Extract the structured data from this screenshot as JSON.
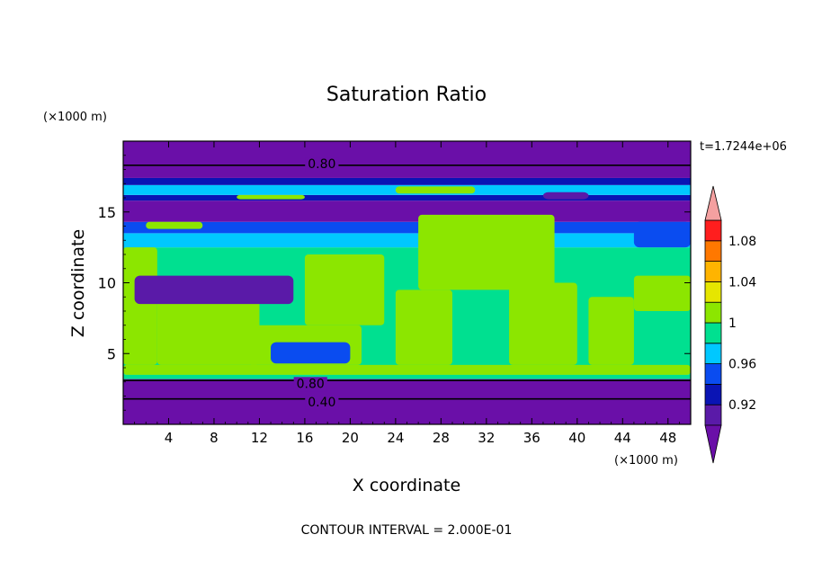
{
  "chart_data": {
    "type": "heatmap",
    "title": "Saturation Ratio",
    "xlabel": "X coordinate",
    "ylabel": "Z coordinate",
    "x_unit": "(×1000 m)",
    "y_unit": "(×1000 m)",
    "time_label": "t=1.7244e+06",
    "footer": "CONTOUR INTERVAL = 2.000E-01",
    "xlim": [
      0,
      50
    ],
    "ylim": [
      0,
      20
    ],
    "x_ticks": [
      4,
      8,
      12,
      16,
      20,
      24,
      28,
      32,
      36,
      40,
      44,
      48
    ],
    "y_ticks": [
      5,
      10,
      15
    ],
    "colorbar": {
      "levels": [
        0.9,
        0.92,
        0.94,
        0.96,
        0.98,
        1.0,
        1.02,
        1.04,
        1.06,
        1.08,
        1.1
      ],
      "labels": [
        "0.92",
        "0.96",
        "1",
        "1.04",
        "1.08"
      ],
      "label_values": [
        0.92,
        0.96,
        1.0,
        1.04,
        1.08
      ],
      "below_color": "#6a0fa8",
      "above_color": "#f4a0a0",
      "colors": [
        "#5a1aa8",
        "#0a14b4",
        "#0a4cf0",
        "#00c8ff",
        "#00e090",
        "#8ce600",
        "#e6e600",
        "#ffb400",
        "#ff7800",
        "#ff1e1e"
      ]
    },
    "contour_labels": [
      {
        "text": "0.80",
        "x": 17.5,
        "z": 18.4
      },
      {
        "text": "0.80",
        "x": 16.5,
        "z": 2.9
      },
      {
        "text": "0.40",
        "x": 17.5,
        "z": 1.6
      }
    ],
    "bands": [
      {
        "z0": 0.0,
        "z1": 3.2,
        "value": 0.6
      },
      {
        "z0": 3.2,
        "z1": 3.5,
        "value": 0.99
      },
      {
        "z0": 3.5,
        "z1": 12.5,
        "value": 0.99
      },
      {
        "z0": 12.5,
        "z1": 13.5,
        "value": 0.97
      },
      {
        "z0": 13.5,
        "z1": 14.3,
        "value": 0.95
      },
      {
        "z0": 14.3,
        "z1": 15.8,
        "value": 0.85
      },
      {
        "z0": 15.8,
        "z1": 16.2,
        "value": 0.93
      },
      {
        "z0": 16.2,
        "z1": 16.9,
        "value": 0.97
      },
      {
        "z0": 16.9,
        "z1": 17.4,
        "value": 0.93
      },
      {
        "z0": 17.4,
        "z1": 20.0,
        "value": 0.8
      }
    ],
    "saturated_regions": [
      {
        "x": [
          0,
          50
        ],
        "z": [
          3.5,
          4.2
        ],
        "value": 1.01
      },
      {
        "x": [
          0,
          3
        ],
        "z": [
          4.2,
          12.5
        ],
        "value": 1.01
      },
      {
        "x": [
          3,
          12
        ],
        "z": [
          4.2,
          9.0
        ],
        "value": 1.01
      },
      {
        "x": [
          11,
          21
        ],
        "z": [
          4.2,
          7.0
        ],
        "value": 1.01
      },
      {
        "x": [
          16,
          23
        ],
        "z": [
          7.0,
          12.0
        ],
        "value": 1.01
      },
      {
        "x": [
          24,
          29
        ],
        "z": [
          4.2,
          9.5
        ],
        "value": 1.01
      },
      {
        "x": [
          26,
          38
        ],
        "z": [
          9.5,
          14.8
        ],
        "value": 1.01
      },
      {
        "x": [
          34,
          40
        ],
        "z": [
          4.2,
          10.0
        ],
        "value": 1.01
      },
      {
        "x": [
          41,
          45
        ],
        "z": [
          4.2,
          9.0
        ],
        "value": 1.01
      },
      {
        "x": [
          45,
          50
        ],
        "z": [
          8.0,
          10.5
        ],
        "value": 1.01
      },
      {
        "x": [
          2,
          7
        ],
        "z": [
          13.8,
          14.3
        ],
        "value": 1.01
      },
      {
        "x": [
          10,
          16
        ],
        "z": [
          15.9,
          16.2
        ],
        "value": 1.01
      },
      {
        "x": [
          24,
          31
        ],
        "z": [
          16.3,
          16.8
        ],
        "value": 1.01
      }
    ],
    "dry_features": [
      {
        "x": [
          1,
          15
        ],
        "z": [
          8.5,
          10.5
        ],
        "value": 0.91
      },
      {
        "x": [
          13,
          20
        ],
        "z": [
          4.3,
          5.8
        ],
        "value": 0.95
      },
      {
        "x": [
          45,
          50
        ],
        "z": [
          12.5,
          14.3
        ],
        "value": 0.95
      },
      {
        "x": [
          37,
          41
        ],
        "z": [
          15.9,
          16.4
        ],
        "value": 0.91
      }
    ],
    "contours": [
      {
        "value": 0.8,
        "z": 18.3
      },
      {
        "value": 0.8,
        "z": 3.1
      },
      {
        "value": 0.4,
        "z": 1.8
      }
    ]
  }
}
